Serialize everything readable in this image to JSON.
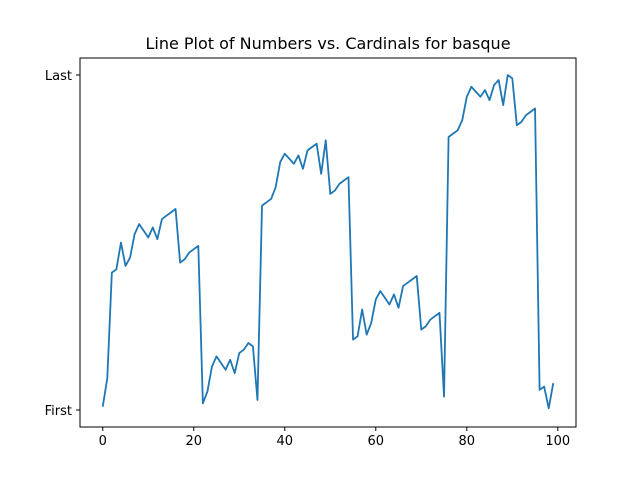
{
  "chart_data": {
    "type": "line",
    "title": "Line Plot of Numbers vs. Cardinals for basque",
    "xlabel": "",
    "ylabel": "",
    "xlim": [
      -5,
      104
    ],
    "ylim": [
      0,
      1
    ],
    "xticks": [
      0,
      20,
      40,
      60,
      80,
      100
    ],
    "yticks": [
      {
        "label": "First",
        "value": 0
      },
      {
        "label": "Last",
        "value": 1
      }
    ],
    "grid": false,
    "legend": "none",
    "color": "#1f77b4",
    "series": [
      {
        "x": [
          0,
          1,
          2,
          3,
          4,
          5,
          6,
          7,
          8,
          9,
          10,
          11,
          12,
          13,
          14,
          15,
          16,
          17,
          18,
          19,
          20,
          21,
          22,
          23,
          24,
          25,
          26,
          27,
          28,
          29,
          30,
          31,
          32,
          33,
          34,
          35,
          36,
          37,
          38,
          39,
          40,
          41,
          42,
          43,
          44,
          45,
          46,
          47,
          48,
          49,
          50,
          51,
          52,
          53,
          54,
          55,
          56,
          57,
          58,
          59,
          60,
          61,
          62,
          63,
          64,
          65,
          66,
          67,
          68,
          69,
          70,
          71,
          72,
          73,
          74,
          75,
          76,
          77,
          78,
          79,
          80,
          81,
          82,
          83,
          84,
          85,
          86,
          87,
          88,
          89,
          90,
          91,
          92,
          93,
          94,
          95,
          96,
          97,
          98,
          99
        ],
        "y": [
          0.01,
          0.095,
          0.41,
          0.42,
          0.5,
          0.43,
          0.455,
          0.525,
          0.555,
          0.535,
          0.515,
          0.545,
          0.51,
          0.57,
          0.58,
          0.59,
          0.6,
          0.44,
          0.45,
          0.47,
          0.48,
          0.49,
          0.02,
          0.055,
          0.13,
          0.16,
          0.14,
          0.12,
          0.15,
          0.11,
          0.17,
          0.18,
          0.2,
          0.19,
          0.03,
          0.61,
          0.62,
          0.63,
          0.665,
          0.74,
          0.765,
          0.75,
          0.735,
          0.76,
          0.72,
          0.775,
          0.785,
          0.795,
          0.705,
          0.805,
          0.645,
          0.655,
          0.675,
          0.685,
          0.695,
          0.21,
          0.22,
          0.3,
          0.225,
          0.26,
          0.33,
          0.355,
          0.335,
          0.315,
          0.345,
          0.305,
          0.37,
          0.38,
          0.39,
          0.4,
          0.24,
          0.25,
          0.27,
          0.28,
          0.29,
          0.04,
          0.815,
          0.825,
          0.835,
          0.865,
          0.935,
          0.965,
          0.95,
          0.935,
          0.955,
          0.925,
          0.97,
          0.985,
          0.91,
          1.0,
          0.99,
          0.85,
          0.86,
          0.88,
          0.89,
          0.9,
          0.06,
          0.07,
          0.005,
          0.08
        ]
      }
    ]
  }
}
